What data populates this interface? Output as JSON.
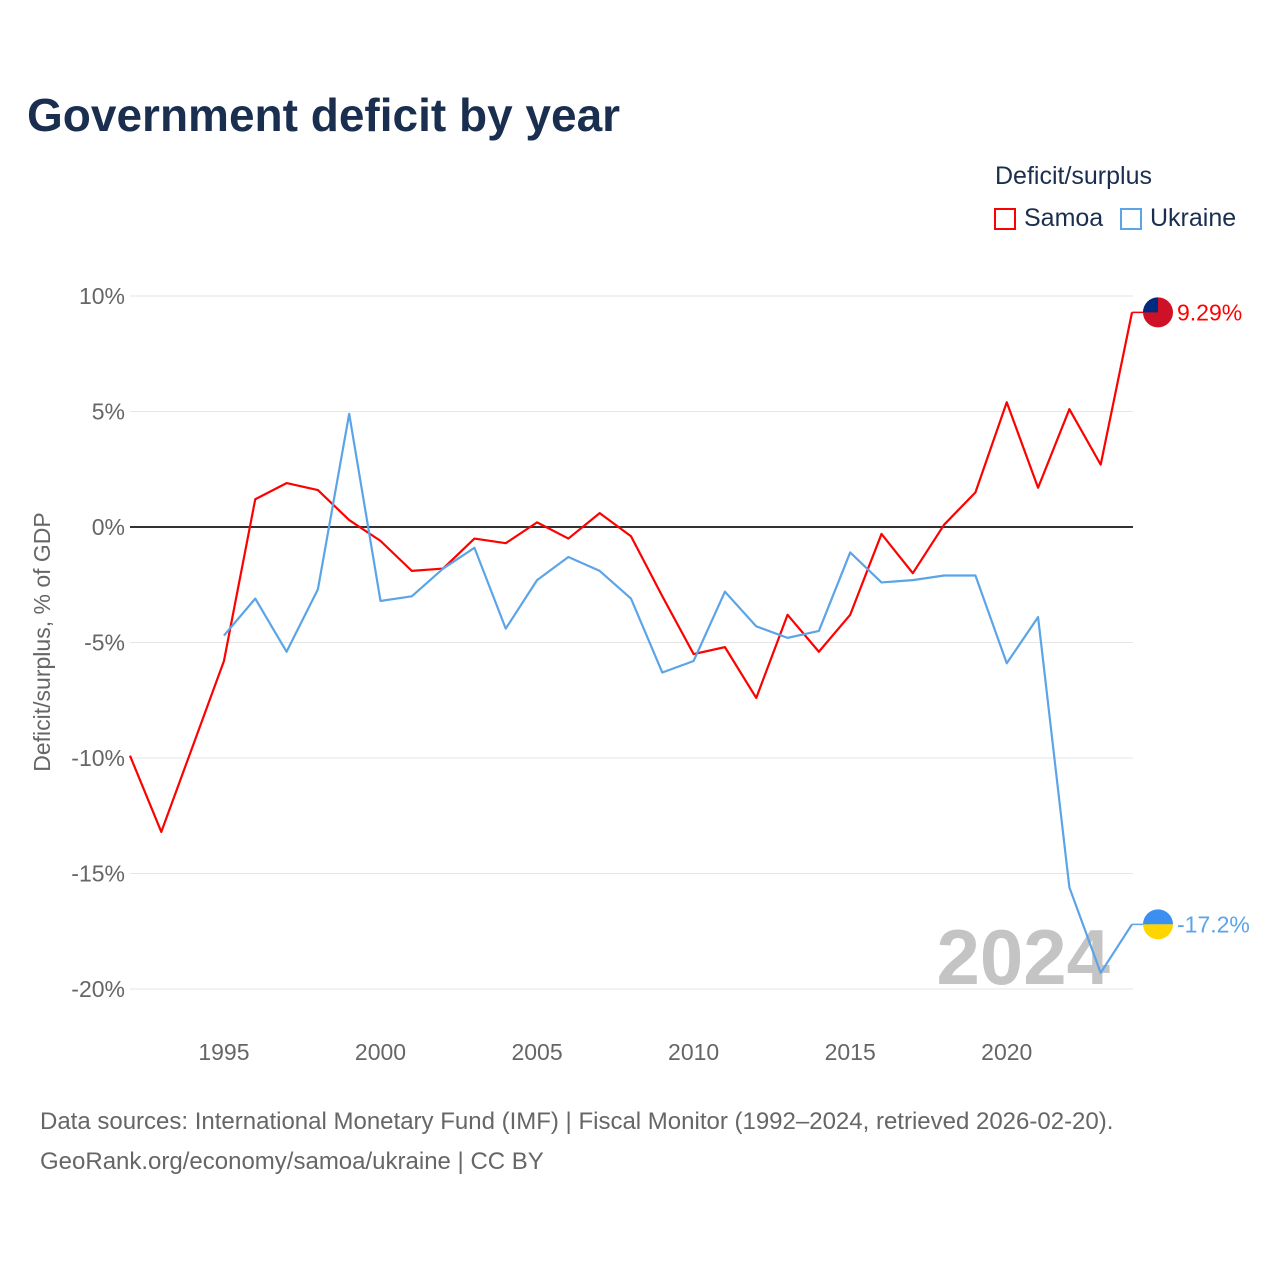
{
  "title": "Government deficit by year",
  "legend": {
    "title": "Deficit/surplus",
    "items": [
      {
        "name": "Samoa",
        "color": "#ff0000"
      },
      {
        "name": "Ukraine",
        "color": "#5ba4e8"
      }
    ]
  },
  "footer": {
    "line1": "Data sources: International Monetary Fund (IMF) | Fiscal Monitor (1992–2024, retrieved 2026-02-20).",
    "line2": "GeoRank.org/economy/samoa/ukraine | CC BY"
  },
  "chart_data": {
    "type": "line",
    "title": "Government deficit by year",
    "ylabel": "Deficit/surplus, % of GDP",
    "xlabel": "",
    "xlim": [
      1992,
      2024
    ],
    "ylim": [
      -20,
      10
    ],
    "yticks": [
      10,
      5,
      0,
      -5,
      -10,
      -15,
      -20
    ],
    "ytick_labels": [
      "10%",
      "5%",
      "0%",
      "-5%",
      "-10%",
      "-15%",
      "-20%"
    ],
    "xticks": [
      1995,
      2000,
      2005,
      2010,
      2015,
      2020
    ],
    "xtick_labels": [
      "1995",
      "2000",
      "2005",
      "2010",
      "2015",
      "2020"
    ],
    "grid": true,
    "legend_position": "top-right",
    "year_watermark": "2024",
    "series": [
      {
        "name": "Samoa",
        "color": "#ff0000",
        "end_label": "9.29%",
        "x": [
          1992,
          1993,
          1994,
          1995,
          1996,
          1997,
          1998,
          1999,
          2000,
          2001,
          2002,
          2003,
          2004,
          2005,
          2006,
          2007,
          2008,
          2009,
          2010,
          2011,
          2012,
          2013,
          2014,
          2015,
          2016,
          2017,
          2018,
          2019,
          2020,
          2021,
          2022,
          2023,
          2024
        ],
        "values": [
          -9.9,
          -13.2,
          -9.5,
          -5.8,
          1.2,
          1.9,
          1.6,
          0.3,
          -0.6,
          -1.9,
          -1.8,
          -0.5,
          -0.7,
          0.2,
          -0.5,
          0.6,
          -0.4,
          -3.0,
          -5.5,
          -5.2,
          -7.4,
          -3.8,
          -5.4,
          -3.8,
          -0.3,
          -2.0,
          0.1,
          1.5,
          5.4,
          1.7,
          5.1,
          2.7,
          9.29
        ]
      },
      {
        "name": "Ukraine",
        "color": "#5ba4e8",
        "end_label": "-17.2%",
        "x": [
          1995,
          1996,
          1997,
          1998,
          1999,
          2000,
          2001,
          2002,
          2003,
          2004,
          2005,
          2006,
          2007,
          2008,
          2009,
          2010,
          2011,
          2012,
          2013,
          2014,
          2015,
          2016,
          2017,
          2018,
          2019,
          2020,
          2021,
          2022,
          2023,
          2024
        ],
        "values": [
          -4.7,
          -3.1,
          -5.4,
          -2.7,
          4.9,
          -3.2,
          -3.0,
          -1.8,
          -0.9,
          -4.4,
          -2.3,
          -1.3,
          -1.9,
          -3.1,
          -6.3,
          -5.8,
          -2.8,
          -4.3,
          -4.8,
          -4.5,
          -1.1,
          -2.4,
          -2.3,
          -2.1,
          -2.1,
          -5.9,
          -3.9,
          -15.6,
          -19.3,
          -17.2
        ]
      }
    ]
  }
}
